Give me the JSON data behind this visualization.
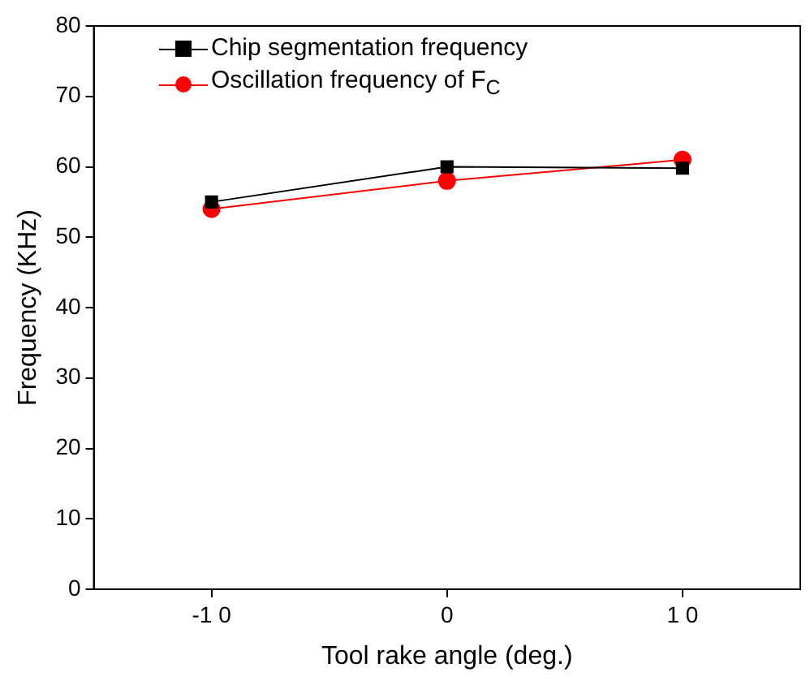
{
  "chart_data": {
    "type": "line",
    "xlabel": "Tool rake angle (deg.)",
    "ylabel": "Frequency (KHz)",
    "categories": [
      "-1 0",
      "0",
      "1 0"
    ],
    "series": [
      {
        "name": "Chip segmentation frequency",
        "color": "#000000",
        "marker": "square",
        "values": [
          55,
          60,
          59.8
        ]
      },
      {
        "name": "Oscillation frequency of F$_{C}$",
        "color": "#ff0000",
        "marker": "circle",
        "values": [
          54,
          58,
          61
        ]
      }
    ],
    "ylim": [
      0,
      80
    ],
    "yticks": [
      0,
      10,
      20,
      30,
      40,
      50,
      60,
      70,
      80
    ],
    "grid": false,
    "legend": "top left",
    "line_style": "solid"
  }
}
